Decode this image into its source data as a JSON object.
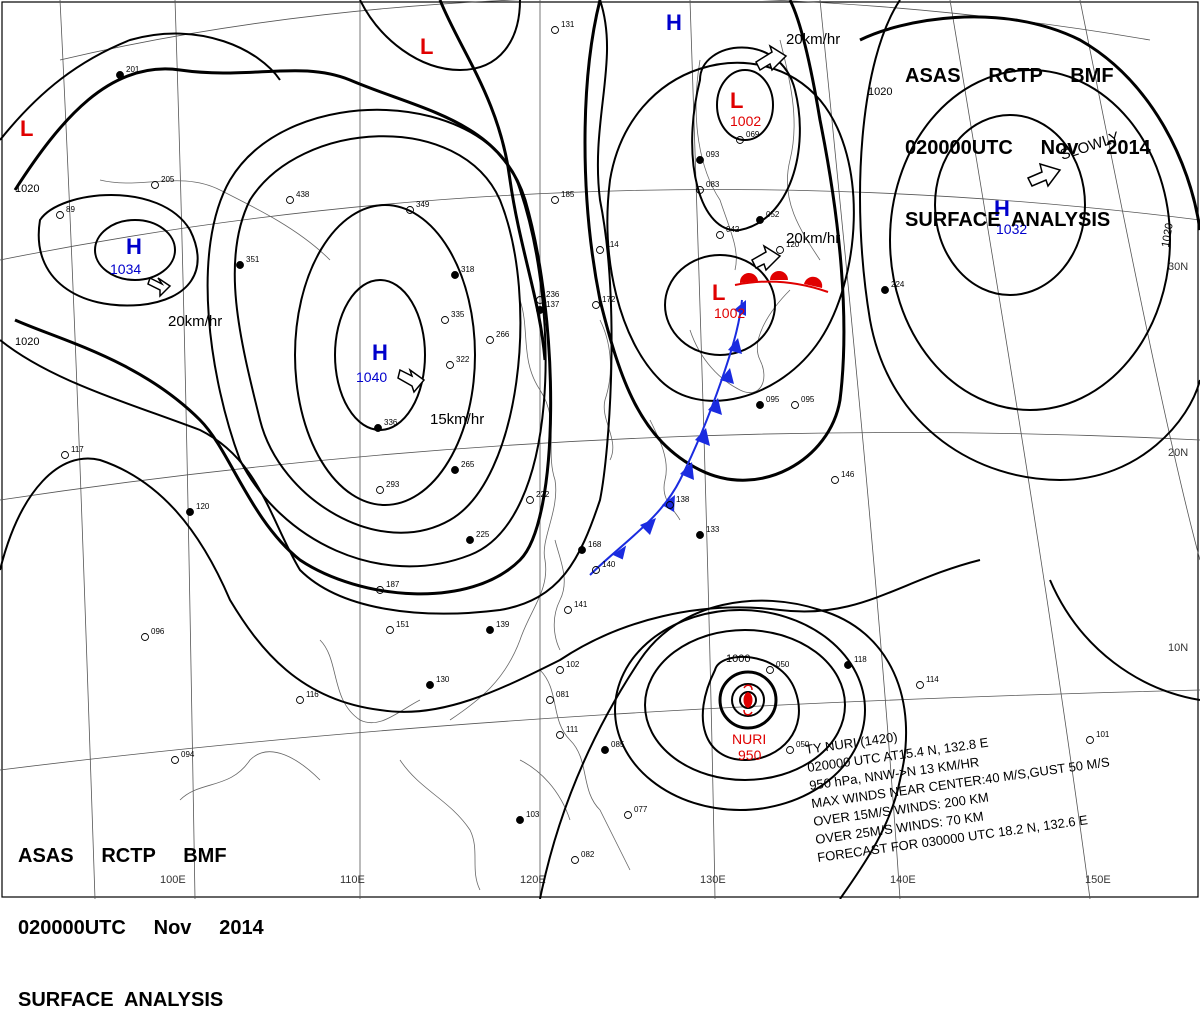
{
  "header_top": {
    "line1": "ASAS     RCTP     BMF",
    "line2": "020000UTC     Nov     2014",
    "line3": "SURFACE  ANALYSIS"
  },
  "header_bottom": {
    "line1": "ASAS     RCTP     BMF",
    "line2": "020000UTC     Nov     2014",
    "line3": "SURFACE  ANALYSIS"
  },
  "longitude_labels": [
    "100E",
    "110E",
    "120E",
    "130E",
    "140E",
    "150E"
  ],
  "latitude_labels": [
    "10N",
    "20N",
    "30N"
  ],
  "isobar_labels": [
    "1020",
    "1020",
    "1020",
    "1020",
    "1000"
  ],
  "pressure_centers": [
    {
      "type": "H",
      "value": "1034"
    },
    {
      "type": "H",
      "value": "1040"
    },
    {
      "type": "H",
      "value": "1032"
    },
    {
      "type": "H",
      "value": ""
    },
    {
      "type": "L",
      "value": "1002"
    },
    {
      "type": "L",
      "value": "1002"
    },
    {
      "type": "L",
      "value": ""
    },
    {
      "type": "L",
      "value": ""
    }
  ],
  "motion_labels": [
    "20km/hr",
    "20km/hr",
    "20km/hr",
    "15km/hr",
    "SLOWLY"
  ],
  "typhoon": {
    "name": "NURI",
    "pressure": "950",
    "lines": [
      "TY NURI  (1420)",
      "020000 UTC  AT15.4 N, 132.8 E",
      "950 hPa, NNW->N  13 KM/HR",
      "MAX WINDS NEAR CENTER:40 M/S,GUST 50 M/S",
      "OVER 15M/S WINDS: 200 KM",
      "OVER 25M/S WINDS: 70 KM",
      "FORECAST FOR 030000 UTC 18.2 N, 132.6 E"
    ]
  },
  "stations": [
    {
      "t": "201"
    },
    {
      "t": "205"
    },
    {
      "t": "89"
    },
    {
      "t": "351"
    },
    {
      "t": "349"
    },
    {
      "t": "438"
    },
    {
      "t": "318"
    },
    {
      "t": "335"
    },
    {
      "t": "322"
    },
    {
      "t": "336"
    },
    {
      "t": "266"
    },
    {
      "t": "236"
    },
    {
      "t": "265"
    },
    {
      "t": "293"
    },
    {
      "t": "222"
    },
    {
      "t": "225"
    },
    {
      "t": "187"
    },
    {
      "t": "151"
    },
    {
      "t": "139"
    },
    {
      "t": "114"
    },
    {
      "t": "172"
    },
    {
      "t": "137"
    },
    {
      "t": "185"
    },
    {
      "t": "131"
    },
    {
      "t": "093"
    },
    {
      "t": "083"
    },
    {
      "t": "069"
    },
    {
      "t": "052"
    },
    {
      "t": "042"
    },
    {
      "t": "120"
    },
    {
      "t": "224"
    },
    {
      "t": "095"
    },
    {
      "t": "146"
    },
    {
      "t": "168"
    },
    {
      "t": "140"
    },
    {
      "t": "141"
    },
    {
      "t": "133"
    },
    {
      "t": "138"
    },
    {
      "t": "050"
    },
    {
      "t": "118"
    },
    {
      "t": "114"
    },
    {
      "t": "101"
    },
    {
      "t": "085"
    },
    {
      "t": "081"
    },
    {
      "t": "077"
    },
    {
      "t": "103"
    },
    {
      "t": "082"
    },
    {
      "t": "111"
    },
    {
      "t": "130"
    },
    {
      "t": "116"
    },
    {
      "t": "117"
    },
    {
      "t": "120"
    },
    {
      "t": "096"
    },
    {
      "t": "094"
    },
    {
      "t": "095"
    },
    {
      "t": "102"
    },
    {
      "t": "050"
    }
  ]
}
